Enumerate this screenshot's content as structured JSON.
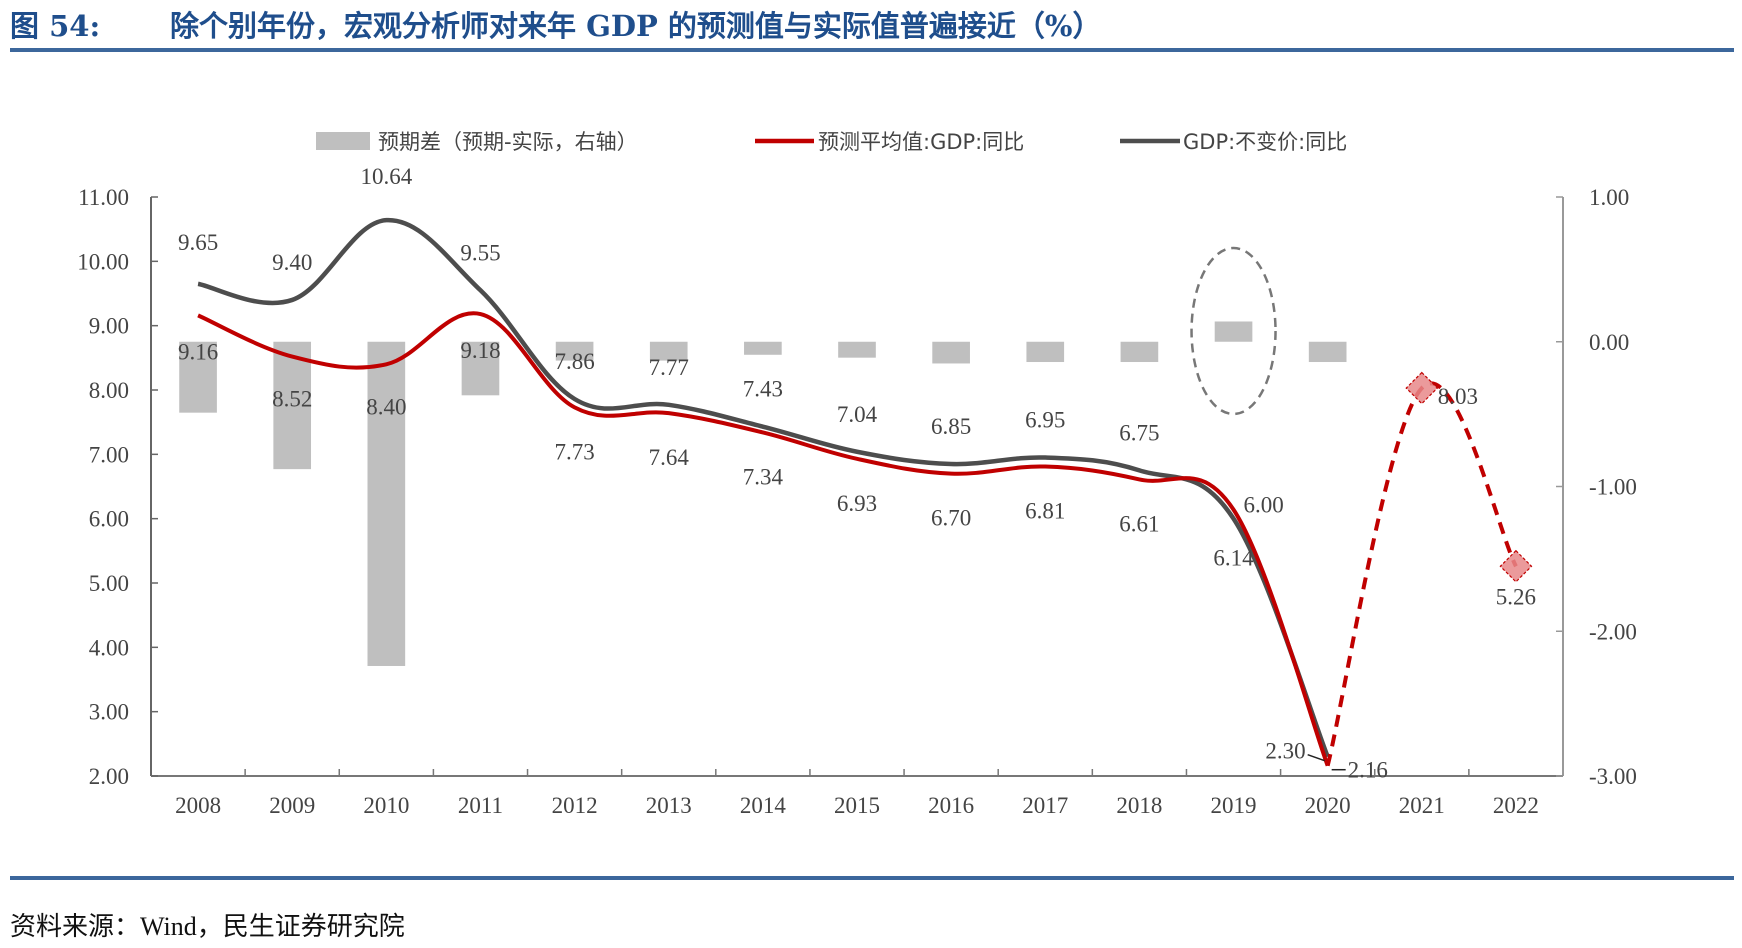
{
  "header": {
    "figure_number": "图 54:",
    "title": "除个别年份，宏观分析师对来年 GDP 的预测值与实际值普遍接近（%）"
  },
  "footer": {
    "source": "资料来源：Wind，民生证券研究院"
  },
  "colors": {
    "title": "#1f4e8c",
    "rule": "#3c679c",
    "bar": "#bfbfbf",
    "forecast": "#c00000",
    "actual": "#4d4d4d",
    "marker": "#e8888a",
    "ellipse": "#777777"
  },
  "chart_data": {
    "type": "bar+line",
    "title": "除个别年份，宏观分析师对来年 GDP 的预测值与实际值普遍接近（%）",
    "categories": [
      "2008",
      "2009",
      "2010",
      "2011",
      "2012",
      "2013",
      "2014",
      "2015",
      "2016",
      "2017",
      "2018",
      "2019",
      "2020",
      "2021",
      "2022"
    ],
    "left_axis": {
      "ylim": [
        2,
        11
      ],
      "ticks": [
        "11.00",
        "10.00",
        "9.00",
        "8.00",
        "7.00",
        "6.00",
        "5.00",
        "4.00",
        "3.00",
        "2.00"
      ]
    },
    "right_axis": {
      "ylim": [
        -3,
        1
      ],
      "ticks": [
        "1.00",
        "0.00",
        "-1.00",
        "-2.00",
        "-3.00"
      ]
    },
    "legend": {
      "position": "top",
      "entries": [
        "预期差（预期-实际，右轴）",
        "预测平均值:GDP:同比",
        "GDP:不变价:同比"
      ]
    },
    "series": [
      {
        "name": "预期差（预期-实际，右轴）",
        "kind": "bar",
        "axis": "right",
        "values": [
          -0.49,
          -0.88,
          -2.24,
          -0.37,
          -0.13,
          -0.13,
          -0.09,
          -0.11,
          -0.15,
          -0.14,
          -0.14,
          0.14,
          -0.14,
          null,
          null
        ]
      },
      {
        "name": "预测平均值:GDP:同比",
        "kind": "line",
        "axis": "left",
        "values": [
          9.16,
          8.52,
          8.4,
          9.18,
          7.73,
          7.64,
          7.34,
          6.93,
          6.7,
          6.81,
          6.61,
          6.14,
          2.16,
          8.03,
          5.26
        ],
        "labels": [
          "9.16",
          "8.52",
          "8.40",
          "9.18",
          "7.73",
          "7.64",
          "7.34",
          "6.93",
          "6.70",
          "6.81",
          "6.61",
          "6.14",
          "2.16",
          "8.03",
          "5.26"
        ],
        "dashed_from_index": 12
      },
      {
        "name": "GDP:不变价:同比",
        "kind": "line",
        "axis": "left",
        "values": [
          9.65,
          9.4,
          10.64,
          9.55,
          7.86,
          7.77,
          7.43,
          7.04,
          6.85,
          6.95,
          6.75,
          6.0,
          2.3,
          null,
          null
        ],
        "labels": [
          "9.65",
          "9.40",
          "10.64",
          "9.55",
          "7.86",
          "7.77",
          "7.43",
          "7.04",
          "6.85",
          "6.95",
          "6.75",
          "6.00",
          "2.30",
          "",
          ""
        ]
      }
    ],
    "annotations": [
      "dashed ellipse highlighting 2019 bar"
    ],
    "grid": false
  }
}
